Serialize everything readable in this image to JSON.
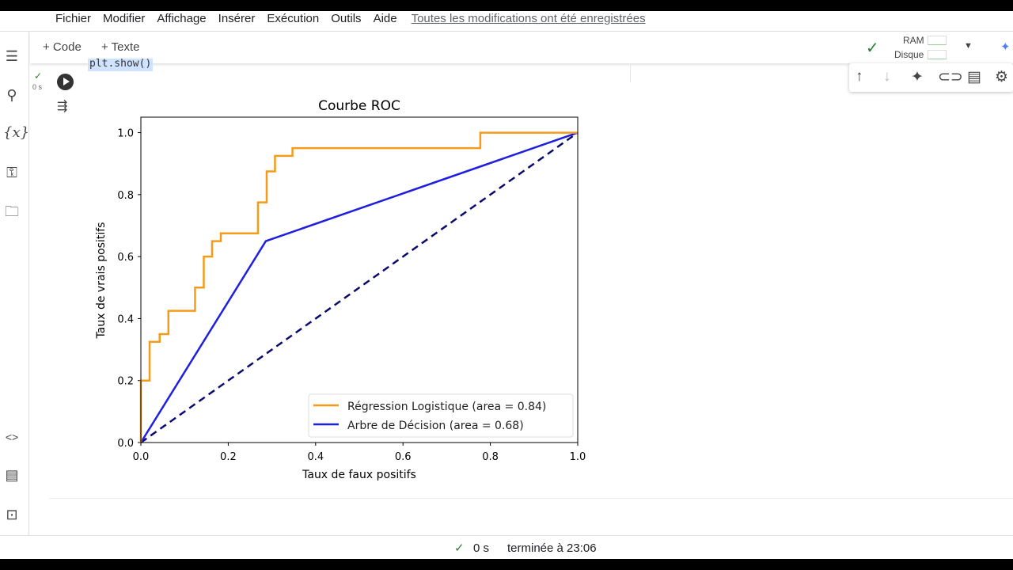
{
  "menu": {
    "items": [
      "Fichier",
      "Modifier",
      "Affichage",
      "Insérer",
      "Exécution",
      "Outils",
      "Aide"
    ],
    "saved_status": "Toutes les modifications ont été enregistrées"
  },
  "toolbar": {
    "add_code": "+ Code",
    "add_text": "+ Texte",
    "ram_label": "RAM",
    "disk_label": "Disque"
  },
  "cell": {
    "code": "plt.show()",
    "exec_time": "0 s"
  },
  "statusbar": {
    "time": "0 s",
    "finished": "terminée à 23:06"
  },
  "chart_data": {
    "type": "line",
    "title": "Courbe ROC",
    "xlabel": "Taux de faux positifs",
    "ylabel": "Taux de vrais positifs",
    "xlim": [
      0,
      1
    ],
    "ylim": [
      0,
      1.05
    ],
    "xticks": [
      "0.0",
      "0.2",
      "0.4",
      "0.6",
      "0.8",
      "1.0"
    ],
    "yticks": [
      "0.0",
      "0.2",
      "0.4",
      "0.6",
      "0.8",
      "1.0"
    ],
    "legend_position": "lower-right",
    "series": [
      {
        "name": "Régression Logistique (area = 0.84)",
        "color": "#f59b1a",
        "x": [
          0,
          0,
          0.02,
          0.02,
          0.043,
          0.043,
          0.063,
          0.063,
          0.124,
          0.124,
          0.144,
          0.144,
          0.163,
          0.163,
          0.183,
          0.183,
          0.268,
          0.268,
          0.288,
          0.288,
          0.307,
          0.307,
          0.347,
          0.347,
          0.777,
          0.777,
          1
        ],
        "y": [
          0,
          0.2,
          0.2,
          0.325,
          0.325,
          0.35,
          0.35,
          0.425,
          0.425,
          0.5,
          0.5,
          0.6,
          0.6,
          0.65,
          0.65,
          0.675,
          0.675,
          0.775,
          0.775,
          0.875,
          0.875,
          0.925,
          0.925,
          0.95,
          0.95,
          1,
          1
        ]
      },
      {
        "name": "Arbre de Décision (area = 0.68)",
        "color": "#1f1fe0",
        "x": [
          0,
          0.286,
          1
        ],
        "y": [
          0,
          0.65,
          1
        ]
      },
      {
        "color": "#0b0b6e",
        "dashed": true,
        "x": [
          0,
          1
        ],
        "y": [
          0,
          1
        ]
      }
    ]
  }
}
